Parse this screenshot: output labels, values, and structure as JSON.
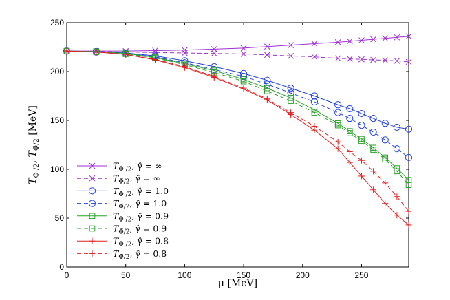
{
  "chart_data": {
    "type": "line",
    "title": "",
    "xlabel": "μ  [MeV]",
    "ylabel": "T_{Φ/2},  T_{Φ̄/2} [MeV]",
    "ylabel_parts": {
      "t1": "T",
      "s1": "Φ /2",
      "sep": ",  ",
      "t2": "T",
      "s2": "Φ̄/2",
      "unit": " [MeV]"
    },
    "xlim": [
      0,
      290
    ],
    "ylim": [
      0,
      250
    ],
    "xticks": [
      0,
      50,
      100,
      150,
      200,
      250
    ],
    "yticks": [
      0,
      50,
      100,
      150,
      200,
      250
    ],
    "legend_position": "lower-left",
    "series": [
      {
        "name": "T_{Φ/2}, γ̂ = ∞",
        "legend": {
          "t": "T",
          "sub": "Φ /2",
          "rest": ", γ̂ = ∞"
        },
        "color": "#9b30d0",
        "dash": false,
        "marker": "x",
        "x": [
          0,
          25,
          50,
          75,
          100,
          125,
          150,
          170,
          190,
          210,
          230,
          240,
          250,
          260,
          270,
          280,
          290
        ],
        "y": [
          221,
          221,
          221,
          221.5,
          222,
          223,
          224,
          225.5,
          227,
          228.5,
          230,
          231,
          232,
          233,
          234,
          235,
          236
        ]
      },
      {
        "name": "T_{Φ̄/2}, γ̂ = ∞",
        "legend": {
          "t": "T",
          "sub": "Φ̄/2",
          "rest": ", γ̂ = ∞"
        },
        "color": "#9b30d0",
        "dash": true,
        "marker": "x",
        "x": [
          0,
          25,
          50,
          75,
          100,
          125,
          150,
          170,
          190,
          210,
          230,
          240,
          250,
          260,
          270,
          280,
          290
        ],
        "y": [
          221,
          220.5,
          220,
          219.5,
          219,
          218.5,
          218,
          217,
          216,
          215,
          213.5,
          213,
          212.5,
          212,
          211.5,
          211,
          210
        ]
      },
      {
        "name": "T_{Φ/2}, γ̂ = 1.0",
        "legend": {
          "t": "T",
          "sub": "Φ /2",
          "rest": ", γ̂ = 1.0"
        },
        "color": "#2040e0",
        "dash": false,
        "marker": "o",
        "x": [
          0,
          25,
          50,
          75,
          100,
          125,
          150,
          170,
          190,
          210,
          230,
          240,
          250,
          260,
          270,
          280,
          290
        ],
        "y": [
          221,
          220.5,
          219,
          216,
          211,
          205,
          198,
          191,
          183,
          175,
          166,
          162,
          157,
          152,
          147,
          143,
          141
        ]
      },
      {
        "name": "T_{Φ̄/2}, γ̂ = 1.0",
        "legend": {
          "t": "T",
          "sub": "Φ̄/2",
          "rest": ", γ̂ = 1.0"
        },
        "color": "#2040e0",
        "dash": true,
        "marker": "o",
        "x": [
          0,
          25,
          50,
          75,
          100,
          125,
          150,
          170,
          190,
          210,
          230,
          240,
          250,
          260,
          270,
          280,
          290
        ],
        "y": [
          221,
          220,
          218.5,
          215,
          209,
          202,
          195,
          187,
          178,
          169,
          158,
          152,
          145,
          138,
          130,
          121,
          112
        ]
      },
      {
        "name": "T_{Φ/2}, γ̂ = 0.9",
        "legend": {
          "t": "T",
          "sub": "Φ /2",
          "rest": ", γ̂ = 0.9"
        },
        "color": "#2ca02c",
        "dash": false,
        "marker": "s",
        "x": [
          0,
          25,
          50,
          75,
          100,
          125,
          150,
          170,
          190,
          210,
          230,
          240,
          250,
          260,
          270,
          280,
          290
        ],
        "y": [
          221,
          220.5,
          218.5,
          214.5,
          208,
          201,
          192,
          183,
          173,
          161,
          147,
          139,
          131,
          122,
          112,
          101,
          89
        ]
      },
      {
        "name": "T_{Φ̄/2}, γ̂ = 0.9",
        "legend": {
          "t": "T",
          "sub": "Φ̄/2",
          "rest": ", γ̂ = 0.9"
        },
        "color": "#2ca02c",
        "dash": true,
        "marker": "s",
        "x": [
          0,
          25,
          50,
          75,
          100,
          125,
          150,
          170,
          190,
          210,
          230,
          240,
          250,
          260,
          270,
          280,
          290
        ],
        "y": [
          221,
          220,
          218,
          214,
          207,
          199,
          190,
          180,
          170,
          158,
          145,
          137,
          129,
          120,
          110,
          98,
          84
        ]
      },
      {
        "name": "T_{Φ/2}, γ̂ = 0.8",
        "legend": {
          "t": "T",
          "sub": "Φ /2",
          "rest": ", γ̂ = 0.8"
        },
        "color": "#e02020",
        "dash": false,
        "marker": "+",
        "x": [
          0,
          25,
          50,
          75,
          100,
          125,
          150,
          170,
          190,
          210,
          230,
          240,
          250,
          260,
          270,
          280,
          290
        ],
        "y": [
          221,
          220,
          217.5,
          212,
          204,
          194,
          182,
          171,
          156,
          140,
          121,
          107,
          93,
          79,
          65,
          53,
          43
        ]
      },
      {
        "name": "T_{Φ̄/2}, γ̂ = 0.8",
        "legend": {
          "t": "T",
          "sub": "Φ̄/2",
          "rest": ", γ̂ = 0.8"
        },
        "color": "#e02020",
        "dash": true,
        "marker": "+",
        "x": [
          0,
          25,
          50,
          75,
          100,
          125,
          150,
          170,
          190,
          210,
          230,
          240,
          250,
          260,
          270,
          280,
          290
        ],
        "y": [
          221,
          220,
          217.5,
          212.5,
          205,
          195,
          183,
          172,
          158,
          144,
          128,
          118,
          109,
          98,
          86,
          72,
          57
        ]
      }
    ]
  }
}
